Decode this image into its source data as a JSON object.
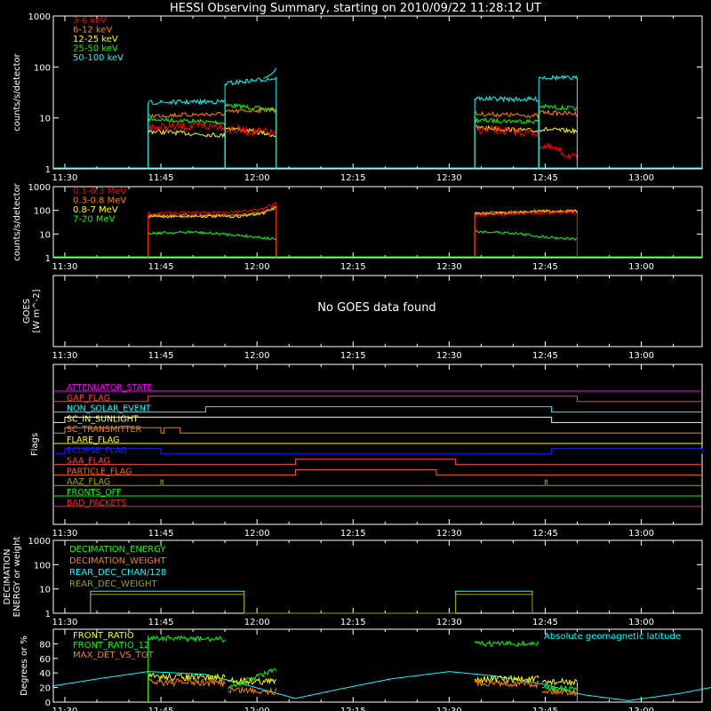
{
  "title": "HESSI Observing Summary, starting on 2010/09/22 11:28:12 UT",
  "colors": {
    "white": "#ffffff",
    "red": "#ff0000",
    "orange": "#ff8000",
    "yellow": "#ffff00",
    "green": "#00ff00",
    "cyan": "#00ffff",
    "magenta": "#ff00ff",
    "blue": "#0000ff",
    "olive": "#a0a000",
    "dark_orange": "#ff6020"
  },
  "time_axis": {
    "tick_labels": [
      "11:30",
      "11:45",
      "12:00",
      "12:15",
      "12:30",
      "12:45",
      "13:00"
    ],
    "tick_minutes": [
      0,
      15,
      30,
      45,
      60,
      75,
      90
    ],
    "range_minutes_from_1130": [
      -1.8,
      99.5
    ]
  },
  "chart_data": [
    {
      "type": "line",
      "panel": "lightcurves_low",
      "ylabel": "counts/s/detector",
      "yscale": "log",
      "ylim": [
        1,
        1000
      ],
      "y_tick_labels": [
        "1",
        "10",
        "100",
        "1000"
      ],
      "legend": [
        "3-6 keV",
        "6-12 keV",
        "12-25 keV",
        "25-50 keV",
        "50-100 keV"
      ],
      "series": [
        {
          "name": "3-6 keV",
          "color": "#ff0000",
          "segments": [
            {
              "x": [
                "11:43",
                "11:55"
              ],
              "y": [
                6.5,
                7.0
              ]
            },
            {
              "x": [
                "11:55",
                "12:03"
              ],
              "y": [
                6.0,
                5.0
              ]
            },
            {
              "x": [
                "12:34",
                "12:44"
              ],
              "y": [
                6.0,
                5.0
              ]
            },
            {
              "x": [
                "12:44",
                "12:50"
              ],
              "y": [
                3.0,
                1.5
              ]
            }
          ]
        },
        {
          "name": "6-12 keV",
          "color": "#ff8000",
          "segments": [
            {
              "x": [
                "11:43",
                "11:55"
              ],
              "y": [
                11,
                12
              ]
            },
            {
              "x": [
                "11:55",
                "12:03"
              ],
              "y": [
                13,
                15
              ]
            },
            {
              "x": [
                "12:34",
                "12:44"
              ],
              "y": [
                12,
                11
              ]
            },
            {
              "x": [
                "12:44",
                "12:50"
              ],
              "y": [
                13,
                12
              ]
            }
          ]
        },
        {
          "name": "12-25 keV",
          "color": "#ffff00",
          "segments": [
            {
              "x": [
                "11:43",
                "11:55"
              ],
              "y": [
                5.5,
                4.5
              ]
            },
            {
              "x": [
                "11:55",
                "12:03"
              ],
              "y": [
                6.5,
                4.5
              ]
            },
            {
              "x": [
                "12:34",
                "12:44"
              ],
              "y": [
                6.5,
                5.5
              ]
            },
            {
              "x": [
                "12:44",
                "12:50"
              ],
              "y": [
                6.0,
                5.5
              ]
            }
          ]
        },
        {
          "name": "25-50 keV",
          "color": "#00ff00",
          "segments": [
            {
              "x": [
                "11:43",
                "11:55"
              ],
              "y": [
                9.5,
                8.0
              ]
            },
            {
              "x": [
                "11:55",
                "12:03"
              ],
              "y": [
                18,
                14
              ]
            },
            {
              "x": [
                "12:34",
                "12:44"
              ],
              "y": [
                9.0,
                8.5
              ]
            },
            {
              "x": [
                "12:44",
                "12:50"
              ],
              "y": [
                17,
                15
              ]
            }
          ]
        },
        {
          "name": "50-100 keV",
          "color": "#00ffff",
          "segments": [
            {
              "x": [
                "11:43",
                "11:55"
              ],
              "y": [
                20,
                21
              ]
            },
            {
              "x": [
                "11:55",
                "12:03"
              ],
              "y": [
                47,
                60
              ]
            },
            {
              "x": [
                "12:34",
                "12:44"
              ],
              "y": [
                24,
                23
              ]
            },
            {
              "x": [
                "12:44",
                "12:50"
              ],
              "y": [
                63,
                60
              ]
            }
          ]
        }
      ]
    },
    {
      "type": "line",
      "panel": "lightcurves_high",
      "ylabel": "counts/s/detector",
      "yscale": "log",
      "ylim": [
        1,
        1000
      ],
      "y_tick_labels": [
        "1",
        "10",
        "100",
        "1000"
      ],
      "legend": [
        "0.1-0.3 MeV",
        "0.3-0.8 MeV",
        "0.8-7 MeV",
        "7-20 MeV"
      ],
      "series": [
        {
          "name": "0.1-0.3 MeV",
          "color": "#ff0000",
          "x": [
            "11:43",
            "11:50",
            "11:57",
            "12:01",
            "12:03"
          ],
          "y": [
            75,
            80,
            85,
            115,
            210
          ]
        },
        {
          "name": "0.3-0.8 MeV",
          "color": "#ff8000",
          "x": [
            "11:43",
            "11:50",
            "11:57",
            "12:01",
            "12:03"
          ],
          "y": [
            60,
            62,
            60,
            80,
            140
          ]
        },
        {
          "name": "0.8-7 MeV",
          "color": "#ffff00",
          "x": [
            "11:43",
            "11:50",
            "11:57",
            "12:01",
            "12:03"
          ],
          "y": [
            55,
            57,
            55,
            75,
            130
          ]
        },
        {
          "name": "7-20 MeV",
          "color": "#00ff00",
          "x": [
            "11:43",
            "11:50",
            "11:57",
            "12:03"
          ],
          "y": [
            11,
            12,
            9,
            6
          ]
        },
        {
          "name": "0.1-0.3 MeV",
          "color": "#ff0000",
          "x": [
            "12:34",
            "12:40",
            "12:44",
            "12:50"
          ],
          "y": [
            62,
            70,
            80,
            75
          ]
        },
        {
          "name": "0.3-0.8 MeV",
          "color": "#ff8000",
          "x": [
            "12:34",
            "12:40",
            "12:44",
            "12:50"
          ],
          "y": [
            75,
            85,
            95,
            95
          ]
        },
        {
          "name": "0.8-7 MeV",
          "color": "#ffff00",
          "x": [
            "12:34",
            "12:40",
            "12:44",
            "12:50"
          ],
          "y": [
            72,
            80,
            90,
            90
          ]
        },
        {
          "name": "7-20 MeV",
          "color": "#00ff00",
          "x": [
            "12:34",
            "12:40",
            "12:44",
            "12:50"
          ],
          "y": [
            13,
            11,
            8,
            6
          ]
        }
      ]
    },
    {
      "type": "line",
      "panel": "goes",
      "ylabel": "GOES\n[W m^-2]",
      "message": "No GOES data found"
    },
    {
      "type": "table",
      "panel": "flags",
      "ylabel": "Flags",
      "flags": [
        {
          "name": "ATTENUATOR_STATE",
          "color": "#ff00ff",
          "high_intervals": []
        },
        {
          "name": "GAP_FLAG",
          "color": "#ff4040",
          "high_intervals": [
            [
              "11:43",
              "12:50"
            ]
          ]
        },
        {
          "name": "NON_SOLAR_EVENT",
          "color": "#00ffff",
          "high_intervals": [
            [
              "11:52",
              "12:46"
            ]
          ]
        },
        {
          "name": "SC_IN_SUNLIGHT",
          "color": "#ffff80",
          "high_intervals": [
            [
              "11:30",
              "12:46"
            ]
          ]
        },
        {
          "name": "SC_TRANSMITTER",
          "color": "#ff8000",
          "high_intervals": [
            [
              "11:30",
              "11:45"
            ],
            [
              "11:45.5",
              "11:48"
            ]
          ]
        },
        {
          "name": "FLARE_FLAG",
          "color": "#ffff00",
          "high_intervals": []
        },
        {
          "name": "ECLIPSE_FLAG",
          "color": "#2020ff",
          "high_intervals": [
            [
              "11:30",
              "11:45"
            ],
            [
              "12:46",
              "13:12"
            ]
          ]
        },
        {
          "name": "SAA_FLAG",
          "color": "#ff4040",
          "high_intervals": [
            [
              "12:06",
              "12:31"
            ]
          ]
        },
        {
          "name": "PARTICLE_FLAG",
          "color": "#ff6020",
          "high_intervals": [
            [
              "12:06",
              "12:28"
            ]
          ]
        },
        {
          "name": "AAZ_FLAG",
          "color": "#a0a000",
          "high_intervals": [
            [
              "11:45",
              "11:45.3"
            ],
            [
              "12:45",
              "12:45.3"
            ]
          ]
        },
        {
          "name": "FRONTS_OFF",
          "color": "#00ff00",
          "high_intervals": []
        },
        {
          "name": "BAD_PACKETS",
          "color": "#ff2020",
          "high_intervals": []
        }
      ]
    },
    {
      "type": "line",
      "panel": "decimation",
      "ylabel": "DECIMATION\nENERGY or weight",
      "yscale": "log",
      "ylim": [
        1,
        1000
      ],
      "y_tick_labels": [
        "1",
        "10",
        "100",
        "1000"
      ],
      "legend": [
        "DECIMATION_ENERGY",
        "DECIMATION_WEIGHT",
        "REAR_DEC_CHAN/128",
        "REAR_DEC_WEIGHT"
      ],
      "series": [
        {
          "name": "DECIMATION_ENERGY",
          "color": "#00ff00",
          "x": [],
          "y": []
        },
        {
          "name": "DECIMATION_WEIGHT",
          "color": "#ff8000",
          "x": [],
          "y": []
        },
        {
          "name": "REAR_DEC_CHAN/128",
          "color": "#00ffff",
          "x": [
            "11:34",
            "11:34",
            "11:58",
            "11:58",
            "12:31",
            "12:31",
            "12:43",
            "12:43"
          ],
          "y": [
            1,
            8,
            8,
            1,
            1,
            8,
            8,
            1
          ]
        },
        {
          "name": "REAR_DEC_WEIGHT",
          "color": "#a0a000",
          "x": [
            "11:34",
            "11:34",
            "11:58",
            "11:58",
            "12:31",
            "12:31",
            "12:43",
            "12:43"
          ],
          "y": [
            1,
            6,
            6,
            1,
            1,
            6,
            6,
            1
          ]
        }
      ]
    },
    {
      "type": "line",
      "panel": "ratios",
      "ylabel": "Degrees or %",
      "ylim": [
        0,
        100
      ],
      "legend": [
        "FRONT_RATIO",
        "FRONT_RATIO_12",
        "MAX_DET_VS_TOT"
      ],
      "annotation": "Absolute geomagnetic latitude",
      "series": [
        {
          "name": "FRONT_RATIO",
          "color": "#ffff00",
          "x": [
            "11:43",
            "11:55",
            "11:55.5",
            "12:03",
            "12:34",
            "12:44",
            "12:44.5",
            "12:50"
          ],
          "y": [
            35,
            33,
            30,
            28,
            32,
            31,
            28,
            27
          ]
        },
        {
          "name": "FRONT_RATIO_12",
          "color": "#00ff00",
          "x": [
            "11:43",
            "11:55",
            "11:55.5",
            "12:03",
            "12:34",
            "12:44",
            "12:44.5",
            "12:50"
          ],
          "y": [
            88,
            86,
            20,
            45,
            80,
            80,
            20,
            18
          ]
        },
        {
          "name": "MAX_DET_VS_TOT",
          "color": "#ff8000",
          "x": [
            "11:43",
            "11:55",
            "11:55.5",
            "12:03",
            "12:34",
            "12:44",
            "12:44.5",
            "12:50"
          ],
          "y": [
            28,
            26,
            17,
            15,
            27,
            25,
            16,
            14
          ]
        },
        {
          "name": "Absolute geomagnetic latitude",
          "color": "#00ffff",
          "x": [
            "11:28",
            "11:36",
            "11:43",
            "11:52",
            "11:59",
            "12:06",
            "12:13",
            "12:21",
            "12:30",
            "12:37",
            "12:45",
            "12:51",
            "12:58",
            "13:06",
            "13:12"
          ],
          "y": [
            22,
            33,
            42,
            38,
            22,
            5,
            18,
            32,
            42,
            36,
            24,
            10,
            2,
            12,
            22
          ]
        }
      ]
    }
  ]
}
